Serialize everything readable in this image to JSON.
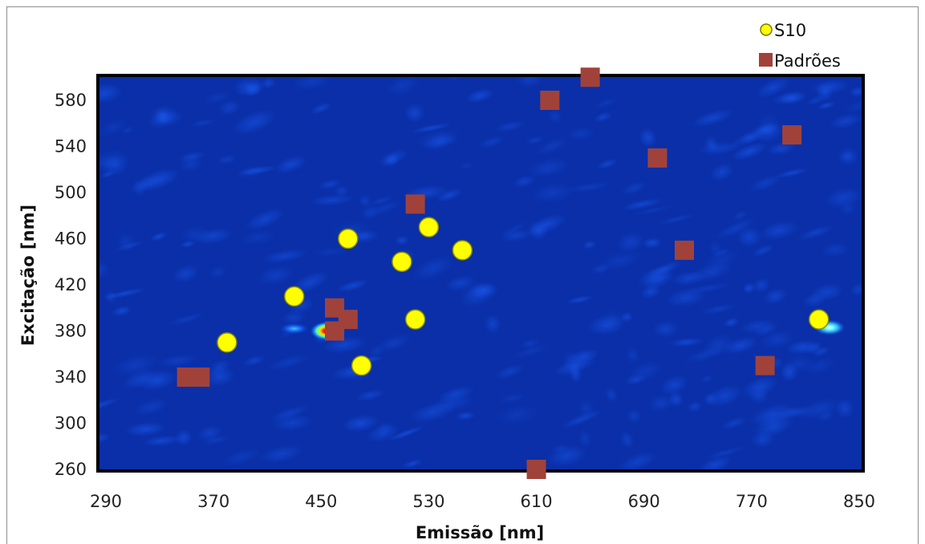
{
  "chart_data": {
    "type": "scatter",
    "title": "",
    "xlabel": "Emissão [nm]",
    "ylabel": "Excitação [nm]",
    "xlim": [
      290,
      850
    ],
    "ylim": [
      250,
      600
    ],
    "x_ticks": [
      290,
      370,
      450,
      530,
      610,
      690,
      770,
      850
    ],
    "y_ticks": [
      260,
      300,
      340,
      380,
      420,
      460,
      500,
      540,
      580
    ],
    "background": "heatmap",
    "legend_position": "top-right",
    "series": [
      {
        "name": "S10",
        "marker": "circle",
        "color": "#ffff00",
        "points": [
          {
            "x": 380,
            "y": 370
          },
          {
            "x": 430,
            "y": 410
          },
          {
            "x": 470,
            "y": 460
          },
          {
            "x": 480,
            "y": 350
          },
          {
            "x": 510,
            "y": 440
          },
          {
            "x": 520,
            "y": 390
          },
          {
            "x": 530,
            "y": 470
          },
          {
            "x": 555,
            "y": 450
          },
          {
            "x": 820,
            "y": 390
          }
        ]
      },
      {
        "name": "Padrões",
        "marker": "square",
        "color": "#a0423a",
        "points": [
          {
            "x": 350,
            "y": 340
          },
          {
            "x": 360,
            "y": 340
          },
          {
            "x": 460,
            "y": 380
          },
          {
            "x": 460,
            "y": 400
          },
          {
            "x": 470,
            "y": 390
          },
          {
            "x": 520,
            "y": 490
          },
          {
            "x": 610,
            "y": 260
          },
          {
            "x": 620,
            "y": 580
          },
          {
            "x": 650,
            "y": 600
          },
          {
            "x": 700,
            "y": 530
          },
          {
            "x": 720,
            "y": 450
          },
          {
            "x": 780,
            "y": 350
          },
          {
            "x": 800,
            "y": 550
          }
        ]
      }
    ],
    "hotspots": [
      {
        "x": 455,
        "y": 380,
        "intensity": "high"
      },
      {
        "x": 430,
        "y": 382,
        "intensity": "low"
      },
      {
        "x": 828,
        "y": 383,
        "intensity": "medium"
      }
    ]
  }
}
